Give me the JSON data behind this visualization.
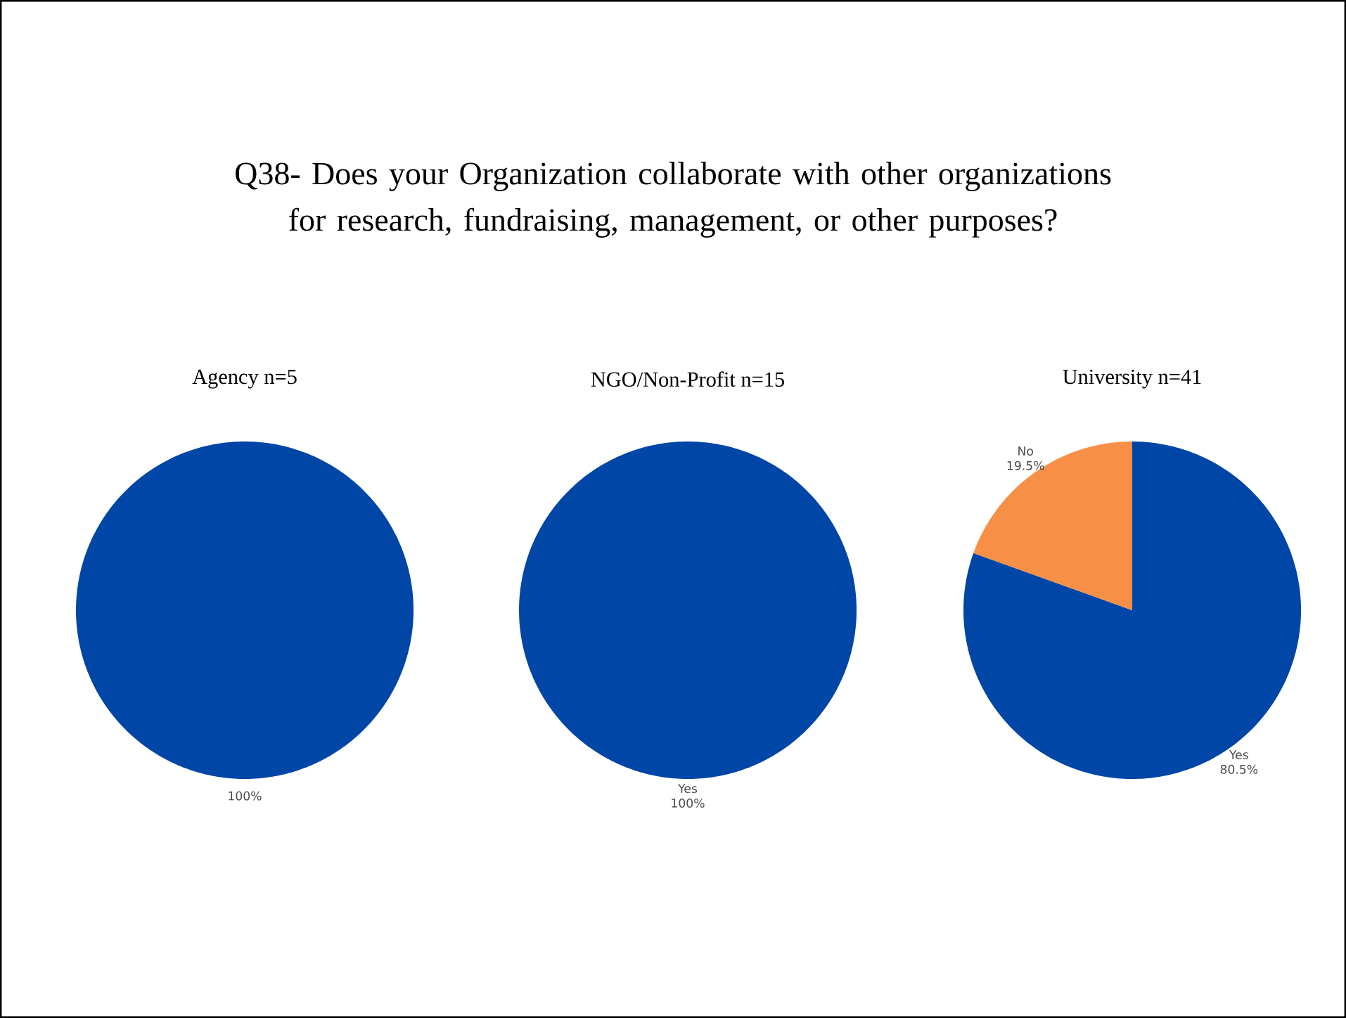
{
  "chart_data": [
    {
      "type": "other",
      "title": "Q38- Does your Organization collaborate with other organizations for research, fundraising, management, or other purposes?"
    },
    {
      "type": "pie",
      "title": "Agency  n=5",
      "categories": [
        null
      ],
      "values": [
        100
      ],
      "colors": [
        "#0046a6"
      ],
      "value_labels": [
        "100%"
      ]
    },
    {
      "type": "pie",
      "title": "NGO/Non-Profit n=15",
      "categories": [
        "Yes"
      ],
      "values": [
        100
      ],
      "colors": [
        "#0046a6"
      ],
      "value_labels": [
        "100%"
      ]
    },
    {
      "type": "pie",
      "title": "University  n=41",
      "categories": [
        "Yes",
        "No"
      ],
      "values": [
        80.5,
        19.5
      ],
      "colors": [
        "#0046a6",
        "#f79046"
      ],
      "value_labels": [
        "80.5%",
        "19.5%"
      ]
    }
  ]
}
